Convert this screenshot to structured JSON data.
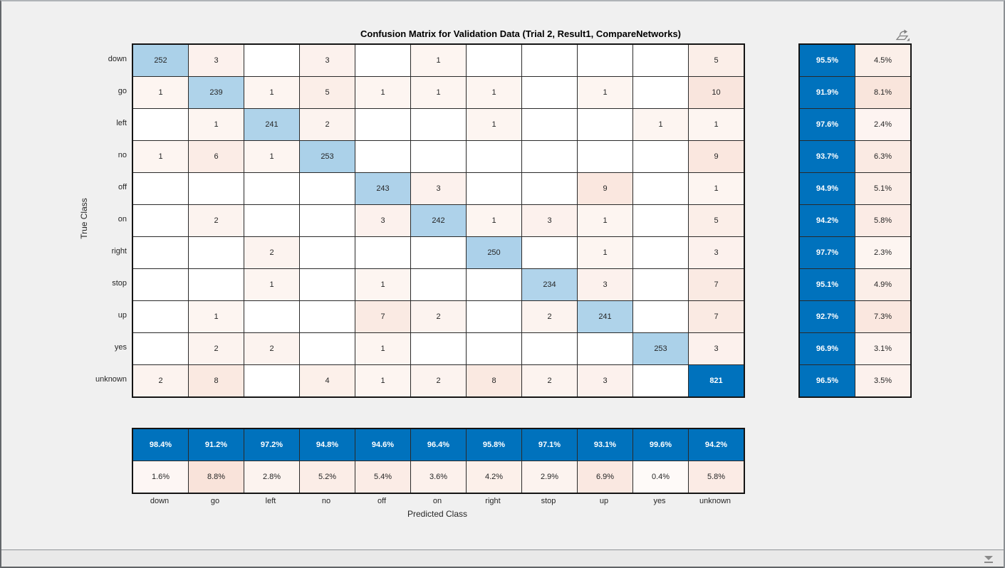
{
  "window": {
    "name": "MATLAB confusion matrix figure"
  },
  "chart_data": {
    "type": "heatmap",
    "subtype": "confusion-matrix",
    "title": "Confusion Matrix for Validation Data (Trial 2, Result1, CompareNetworks)",
    "xlabel": "Predicted Class",
    "ylabel": "True Class",
    "classes": [
      "down",
      "go",
      "left",
      "no",
      "off",
      "on",
      "right",
      "stop",
      "up",
      "yes",
      "unknown"
    ],
    "matrix": [
      [
        252,
        3,
        null,
        3,
        null,
        1,
        null,
        null,
        null,
        null,
        5
      ],
      [
        1,
        239,
        1,
        5,
        1,
        1,
        1,
        null,
        1,
        null,
        10
      ],
      [
        null,
        1,
        241,
        2,
        null,
        null,
        1,
        null,
        null,
        1,
        1
      ],
      [
        1,
        6,
        1,
        253,
        null,
        null,
        null,
        null,
        null,
        null,
        9
      ],
      [
        null,
        null,
        null,
        null,
        243,
        3,
        null,
        null,
        9,
        null,
        1
      ],
      [
        null,
        2,
        null,
        null,
        3,
        242,
        1,
        3,
        1,
        null,
        5
      ],
      [
        null,
        null,
        2,
        null,
        null,
        null,
        250,
        null,
        1,
        null,
        3
      ],
      [
        null,
        null,
        1,
        null,
        1,
        null,
        null,
        234,
        3,
        null,
        7
      ],
      [
        null,
        1,
        null,
        null,
        7,
        2,
        null,
        2,
        241,
        null,
        7
      ],
      [
        null,
        2,
        2,
        null,
        1,
        null,
        null,
        null,
        null,
        253,
        3
      ],
      [
        2,
        8,
        null,
        4,
        1,
        2,
        8,
        2,
        3,
        null,
        821
      ]
    ],
    "row_summary": {
      "correct": [
        "95.5%",
        "91.9%",
        "97.6%",
        "93.7%",
        "94.9%",
        "94.2%",
        "97.7%",
        "95.1%",
        "92.7%",
        "96.9%",
        "96.5%"
      ],
      "incorrect": [
        "4.5%",
        "8.1%",
        "2.4%",
        "6.3%",
        "5.1%",
        "5.8%",
        "2.3%",
        "4.9%",
        "7.3%",
        "3.1%",
        "3.5%"
      ]
    },
    "col_summary": {
      "correct": [
        "98.4%",
        "91.2%",
        "97.2%",
        "94.8%",
        "94.6%",
        "96.4%",
        "95.8%",
        "97.1%",
        "93.1%",
        "99.6%",
        "94.2%"
      ],
      "incorrect": [
        "1.6%",
        "8.8%",
        "2.8%",
        "5.2%",
        "5.4%",
        "3.6%",
        "4.2%",
        "2.9%",
        "6.9%",
        "0.4%",
        "5.8%"
      ]
    },
    "colors": {
      "diagonal": "#0072bd",
      "off_diagonal": "#d95319",
      "text_dark": "#262626",
      "text_light": "#ffffff"
    },
    "layout": {
      "grid_on": true,
      "legend_position": "none"
    }
  },
  "icons": {
    "export": "export-plot-icon",
    "scroll_down": "scroll-down-icon"
  }
}
